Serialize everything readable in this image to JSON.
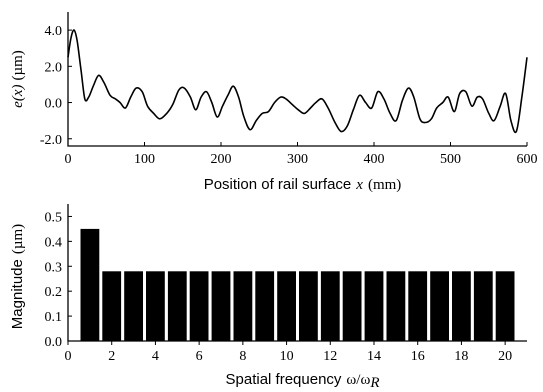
{
  "chart_data": [
    {
      "type": "line",
      "xlabel_text": "Position of rail surface",
      "xlabel_var": "x",
      "xlabel_unit": "(mm)",
      "ylabel_var": "e(x)",
      "ylabel_unit": "(µm)",
      "xlim": [
        0,
        600
      ],
      "ylim": [
        -2.4,
        5.0
      ],
      "xticks": [
        0,
        100,
        200,
        300,
        400,
        500,
        600
      ],
      "yticks": [
        -2.0,
        0.0,
        2.0,
        4.0
      ],
      "ytick_labels": [
        "-2.0",
        "0.0",
        "2.0",
        "4.0"
      ],
      "grid": false,
      "x": [
        0,
        4,
        8,
        12,
        17,
        22,
        27,
        33,
        40,
        47,
        55,
        62,
        68,
        75,
        82,
        89,
        97,
        104,
        112,
        120,
        129,
        137,
        145,
        152,
        160,
        167,
        174,
        181,
        188,
        195,
        202,
        209,
        216,
        223,
        230,
        238,
        246,
        254,
        262,
        270,
        278,
        285,
        293,
        301,
        309,
        317,
        324,
        332,
        340,
        349,
        357,
        365,
        373,
        381,
        389,
        397,
        405,
        413,
        421,
        429,
        437,
        445,
        452,
        460,
        467,
        475,
        482,
        490,
        497,
        505,
        512,
        520,
        528,
        535,
        542,
        550,
        557,
        565,
        572,
        579,
        586,
        593,
        600
      ],
      "y": [
        2.5,
        3.6,
        4.0,
        3.4,
        1.8,
        0.2,
        0.3,
        0.9,
        1.5,
        1.1,
        0.4,
        0.2,
        0.0,
        -0.3,
        0.3,
        0.8,
        0.6,
        -0.2,
        -0.6,
        -0.9,
        -0.6,
        -0.1,
        0.7,
        0.8,
        0.3,
        -0.4,
        0.3,
        0.6,
        0.0,
        -0.8,
        -0.2,
        0.4,
        0.9,
        0.3,
        -0.8,
        -1.5,
        -1.0,
        -0.6,
        -0.5,
        0.0,
        0.3,
        0.2,
        -0.1,
        -0.4,
        -0.6,
        -0.3,
        0.0,
        0.2,
        -0.3,
        -1.1,
        -1.6,
        -1.3,
        -0.4,
        0.4,
        0.0,
        -0.3,
        0.6,
        0.2,
        -0.6,
        -1.0,
        0.1,
        0.8,
        0.3,
        -0.9,
        -1.1,
        -0.9,
        -0.3,
        0.0,
        0.3,
        -0.5,
        0.5,
        0.6,
        -0.2,
        0.3,
        0.2,
        -0.6,
        -1.0,
        -0.2,
        0.5,
        -1.0,
        -1.6,
        0.2,
        2.5
      ]
    },
    {
      "type": "bar",
      "xlabel_text": "Spatial frequency",
      "xlabel_sym": "ω/ω",
      "xlabel_sub": "R",
      "ylabel_text": "Magnitude",
      "ylabel_unit": "(µm)",
      "xlim": [
        0,
        21
      ],
      "ylim": [
        0.0,
        0.55
      ],
      "xticks": [
        0,
        2,
        4,
        6,
        8,
        10,
        12,
        14,
        16,
        18,
        20
      ],
      "yticks": [
        0.0,
        0.1,
        0.2,
        0.3,
        0.4,
        0.5
      ],
      "ytick_labels": [
        "0.0",
        "0.1",
        "0.2",
        "0.3",
        "0.4",
        "0.5"
      ],
      "grid": false,
      "categories": [
        1,
        2,
        3,
        4,
        5,
        6,
        7,
        8,
        9,
        10,
        11,
        12,
        13,
        14,
        15,
        16,
        17,
        18,
        19,
        20
      ],
      "values": [
        0.45,
        0.28,
        0.28,
        0.28,
        0.28,
        0.28,
        0.28,
        0.28,
        0.28,
        0.28,
        0.28,
        0.28,
        0.28,
        0.28,
        0.28,
        0.28,
        0.28,
        0.28,
        0.28,
        0.28
      ],
      "bar_color": "#000000"
    }
  ]
}
